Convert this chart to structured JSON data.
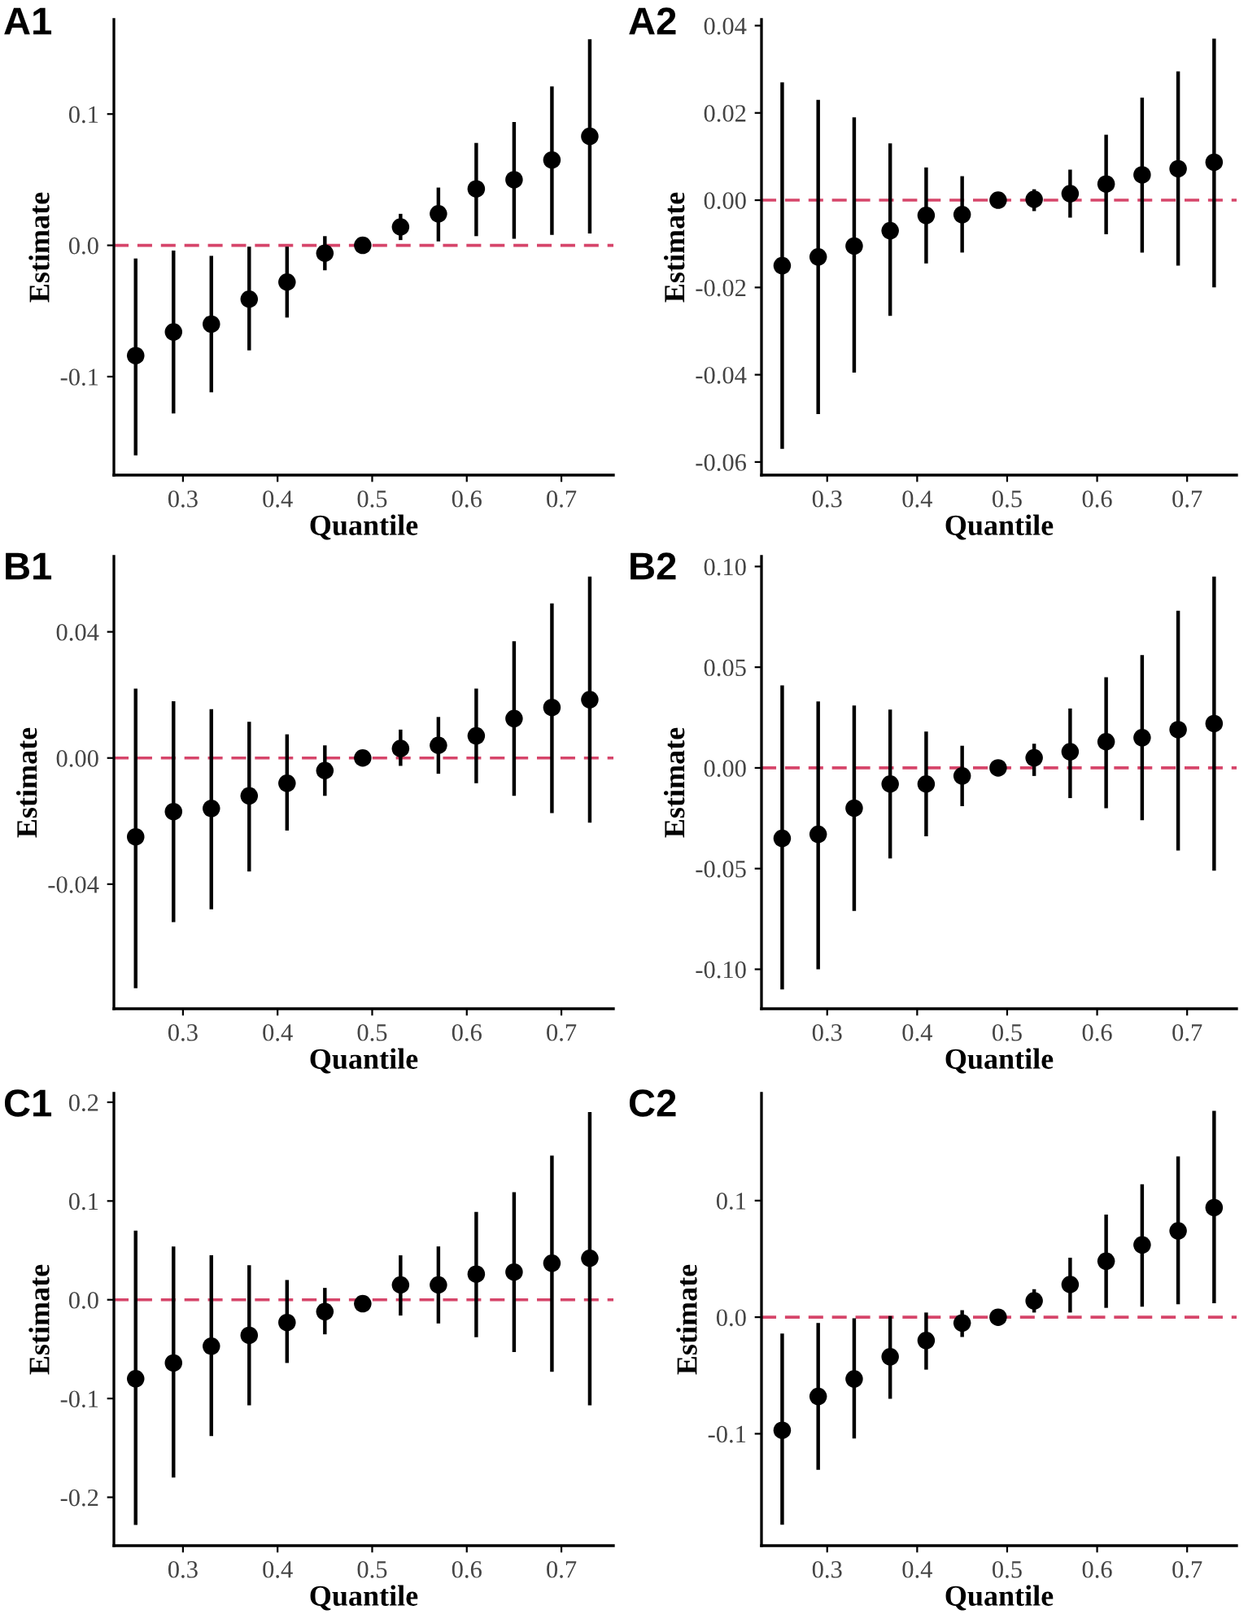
{
  "chart_data": [
    {
      "type": "scatter",
      "title": "A1",
      "xlabel": "Quantile",
      "ylabel": "Estimate",
      "marker": "circle",
      "x": [
        0.25,
        0.29,
        0.33,
        0.37,
        0.41,
        0.45,
        0.49,
        0.53,
        0.57,
        0.61,
        0.65,
        0.69,
        0.73
      ],
      "series": [
        {
          "color": "#000000",
          "values": [
            -0.084,
            -0.066,
            -0.06,
            -0.041,
            -0.028,
            -0.006,
            0,
            0.014,
            0.024,
            0.043,
            0.05,
            0.065,
            0.083
          ],
          "errors": [
            [
              -0.16,
              -0.01
            ],
            [
              -0.128,
              -0.004
            ],
            [
              -0.112,
              -0.008
            ],
            [
              -0.08,
              -0.001
            ],
            [
              -0.055,
              -0.001
            ],
            [
              -0.019,
              0.007
            ],
            null,
            [
              0.004,
              0.024
            ],
            [
              0.003,
              0.044
            ],
            [
              0.007,
              0.078
            ],
            [
              0.005,
              0.094
            ],
            [
              0.008,
              0.121
            ],
            [
              0.009,
              0.157
            ]
          ]
        }
      ],
      "xlim": [
        0.227,
        0.755
      ],
      "xticks": [
        0.3,
        0.4,
        0.5,
        0.6,
        0.7
      ],
      "ylim": [
        -0.175,
        0.172
      ],
      "yticks": [
        {
          "value": -0.1,
          "label": "-0.1"
        },
        {
          "value": 0,
          "label": "0.0"
        },
        {
          "value": 0.1,
          "label": "0.1"
        }
      ],
      "ref_lines": [
        {
          "axis": "y",
          "value": 0,
          "color": "#d6456a",
          "line_style": "dashed"
        }
      ]
    },
    {
      "type": "scatter",
      "title": "A2",
      "xlabel": "Quantile",
      "ylabel": "Estimate",
      "marker": "circle",
      "x": [
        0.25,
        0.29,
        0.33,
        0.37,
        0.41,
        0.45,
        0.49,
        0.53,
        0.57,
        0.61,
        0.65,
        0.69,
        0.73
      ],
      "series": [
        {
          "color": "#000000",
          "values": [
            -0.015,
            -0.013,
            -0.0105,
            -0.007,
            -0.0035,
            -0.0033,
            0,
            0.0002,
            0.0015,
            0.0037,
            0.0058,
            0.0072,
            0.0087
          ],
          "errors": [
            [
              -0.057,
              0.027
            ],
            [
              -0.049,
              0.023
            ],
            [
              -0.0395,
              0.019
            ],
            [
              -0.0265,
              0.013
            ],
            [
              -0.0145,
              0.0075
            ],
            [
              -0.012,
              0.0055
            ],
            null,
            [
              -0.0025,
              0.0025
            ],
            [
              -0.004,
              0.007
            ],
            [
              -0.0078,
              0.015
            ],
            [
              -0.012,
              0.0235
            ],
            [
              -0.015,
              0.0295
            ],
            [
              -0.02,
              0.037
            ]
          ]
        }
      ],
      "xlim": [
        0.227,
        0.755
      ],
      "xticks": [
        0.3,
        0.4,
        0.5,
        0.6,
        0.7
      ],
      "ylim": [
        -0.063,
        0.0414
      ],
      "yticks": [
        {
          "value": -0.06,
          "label": "-0.06"
        },
        {
          "value": -0.04,
          "label": "-0.04"
        },
        {
          "value": -0.02,
          "label": "-0.02"
        },
        {
          "value": 0,
          "label": "0.00"
        },
        {
          "value": 0.02,
          "label": "0.02"
        },
        {
          "value": 0.04,
          "label": "0.04"
        }
      ],
      "ref_lines": [
        {
          "axis": "y",
          "value": 0,
          "color": "#d6456a",
          "line_style": "dashed"
        }
      ]
    },
    {
      "type": "scatter",
      "title": "B1",
      "xlabel": "Quantile",
      "ylabel": "Estimate",
      "marker": "circle",
      "x": [
        0.25,
        0.29,
        0.33,
        0.37,
        0.41,
        0.45,
        0.49,
        0.53,
        0.57,
        0.61,
        0.65,
        0.69,
        0.73
      ],
      "series": [
        {
          "color": "#000000",
          "values": [
            -0.025,
            -0.017,
            -0.016,
            -0.012,
            -0.008,
            -0.004,
            0,
            0.003,
            0.004,
            0.007,
            0.0125,
            0.016,
            0.0185
          ],
          "errors": [
            [
              -0.073,
              0.022
            ],
            [
              -0.052,
              0.018
            ],
            [
              -0.048,
              0.0155
            ],
            [
              -0.036,
              0.0115
            ],
            [
              -0.023,
              0.0075
            ],
            [
              -0.012,
              0.004
            ],
            null,
            [
              -0.0025,
              0.009
            ],
            [
              -0.005,
              0.013
            ],
            [
              -0.008,
              0.022
            ],
            [
              -0.012,
              0.037
            ],
            [
              -0.0175,
              0.049
            ],
            [
              -0.0205,
              0.0575
            ]
          ]
        }
      ],
      "xlim": [
        0.227,
        0.755
      ],
      "xticks": [
        0.3,
        0.4,
        0.5,
        0.6,
        0.7
      ],
      "ylim": [
        -0.0795,
        0.0639
      ],
      "yticks": [
        {
          "value": -0.04,
          "label": "-0.04"
        },
        {
          "value": 0,
          "label": "0.00"
        },
        {
          "value": 0.04,
          "label": "0.04"
        }
      ],
      "ref_lines": [
        {
          "axis": "y",
          "value": 0,
          "color": "#d6456a",
          "line_style": "dashed"
        }
      ]
    },
    {
      "type": "scatter",
      "title": "B2",
      "xlabel": "Quantile",
      "ylabel": "Estimate",
      "marker": "circle",
      "x": [
        0.25,
        0.29,
        0.33,
        0.37,
        0.41,
        0.45,
        0.49,
        0.53,
        0.57,
        0.61,
        0.65,
        0.69,
        0.73
      ],
      "series": [
        {
          "color": "#000000",
          "values": [
            -0.035,
            -0.033,
            -0.02,
            -0.008,
            -0.008,
            -0.004,
            0,
            0.005,
            0.008,
            0.013,
            0.015,
            0.019,
            0.022
          ],
          "errors": [
            [
              -0.11,
              0.041
            ],
            [
              -0.1,
              0.033
            ],
            [
              -0.071,
              0.031
            ],
            [
              -0.045,
              0.029
            ],
            [
              -0.034,
              0.018
            ],
            [
              -0.019,
              0.011
            ],
            null,
            [
              -0.004,
              0.012
            ],
            [
              -0.015,
              0.0295
            ],
            [
              -0.02,
              0.045
            ],
            [
              -0.026,
              0.056
            ],
            [
              -0.041,
              0.078
            ],
            [
              -0.051,
              0.095
            ]
          ]
        }
      ],
      "xlim": [
        0.227,
        0.755
      ],
      "xticks": [
        0.3,
        0.4,
        0.5,
        0.6,
        0.7
      ],
      "ylim": [
        -0.1196,
        0.105
      ],
      "yticks": [
        {
          "value": -0.1,
          "label": "-0.10"
        },
        {
          "value": -0.05,
          "label": "-0.05"
        },
        {
          "value": 0,
          "label": "0.00"
        },
        {
          "value": 0.05,
          "label": "0.05"
        },
        {
          "value": 0.1,
          "label": "0.10"
        }
      ],
      "ref_lines": [
        {
          "axis": "y",
          "value": 0,
          "color": "#d6456a",
          "line_style": "dashed"
        }
      ]
    },
    {
      "type": "scatter",
      "title": "C1",
      "xlabel": "Quantile",
      "ylabel": "Estimate",
      "marker": "circle",
      "x": [
        0.25,
        0.29,
        0.33,
        0.37,
        0.41,
        0.45,
        0.49,
        0.53,
        0.57,
        0.61,
        0.65,
        0.69,
        0.73
      ],
      "series": [
        {
          "color": "#000000",
          "values": [
            -0.08,
            -0.064,
            -0.047,
            -0.036,
            -0.023,
            -0.012,
            -0.004,
            0.015,
            0.015,
            0.026,
            0.028,
            0.037,
            0.042
          ],
          "errors": [
            [
              -0.228,
              0.07
            ],
            [
              -0.18,
              0.054
            ],
            [
              -0.138,
              0.045
            ],
            [
              -0.107,
              0.035
            ],
            [
              -0.064,
              0.02
            ],
            [
              -0.035,
              0.012
            ],
            null,
            [
              -0.016,
              0.045
            ],
            [
              -0.024,
              0.054
            ],
            [
              -0.038,
              0.089
            ],
            [
              -0.053,
              0.109
            ],
            [
              -0.073,
              0.146
            ],
            [
              -0.107,
              0.19
            ]
          ]
        }
      ],
      "xlim": [
        0.227,
        0.755
      ],
      "xticks": [
        0.3,
        0.4,
        0.5,
        0.6,
        0.7
      ],
      "ylim": [
        -0.249,
        0.209
      ],
      "yticks": [
        {
          "value": -0.2,
          "label": "-0.2"
        },
        {
          "value": -0.1,
          "label": "-0.1"
        },
        {
          "value": 0,
          "label": "0.0"
        },
        {
          "value": 0.1,
          "label": "0.1"
        },
        {
          "value": 0.2,
          "label": "0.2"
        }
      ],
      "ref_lines": [
        {
          "axis": "y",
          "value": 0,
          "color": "#d6456a",
          "line_style": "dashed"
        }
      ]
    },
    {
      "type": "scatter",
      "title": "C2",
      "xlabel": "Quantile",
      "ylabel": "Estimate",
      "marker": "circle",
      "x": [
        0.25,
        0.29,
        0.33,
        0.37,
        0.41,
        0.45,
        0.49,
        0.53,
        0.57,
        0.61,
        0.65,
        0.69,
        0.73
      ],
      "series": [
        {
          "color": "#000000",
          "values": [
            -0.097,
            -0.068,
            -0.053,
            -0.034,
            -0.02,
            -0.005,
            0,
            0.014,
            0.028,
            0.048,
            0.062,
            0.074,
            0.094
          ],
          "errors": [
            [
              -0.178,
              -0.014
            ],
            [
              -0.131,
              -0.005
            ],
            [
              -0.104,
              -0.001
            ],
            [
              -0.07,
              0.001
            ],
            [
              -0.045,
              0.004
            ],
            [
              -0.017,
              0.006
            ],
            null,
            [
              0.004,
              0.024
            ],
            [
              0.004,
              0.051
            ],
            [
              0.008,
              0.088
            ],
            [
              0.009,
              0.114
            ],
            [
              0.011,
              0.138
            ],
            [
              0.012,
              0.177
            ]
          ]
        }
      ],
      "xlim": [
        0.227,
        0.755
      ],
      "xticks": [
        0.3,
        0.4,
        0.5,
        0.6,
        0.7
      ],
      "ylim": [
        -0.196,
        0.192
      ],
      "yticks": [
        {
          "value": -0.1,
          "label": "-0.1"
        },
        {
          "value": 0,
          "label": "0.0"
        },
        {
          "value": 0.1,
          "label": "0.1"
        }
      ],
      "ref_lines": [
        {
          "axis": "y",
          "value": 0,
          "color": "#d6456a",
          "line_style": "dashed"
        }
      ]
    }
  ]
}
